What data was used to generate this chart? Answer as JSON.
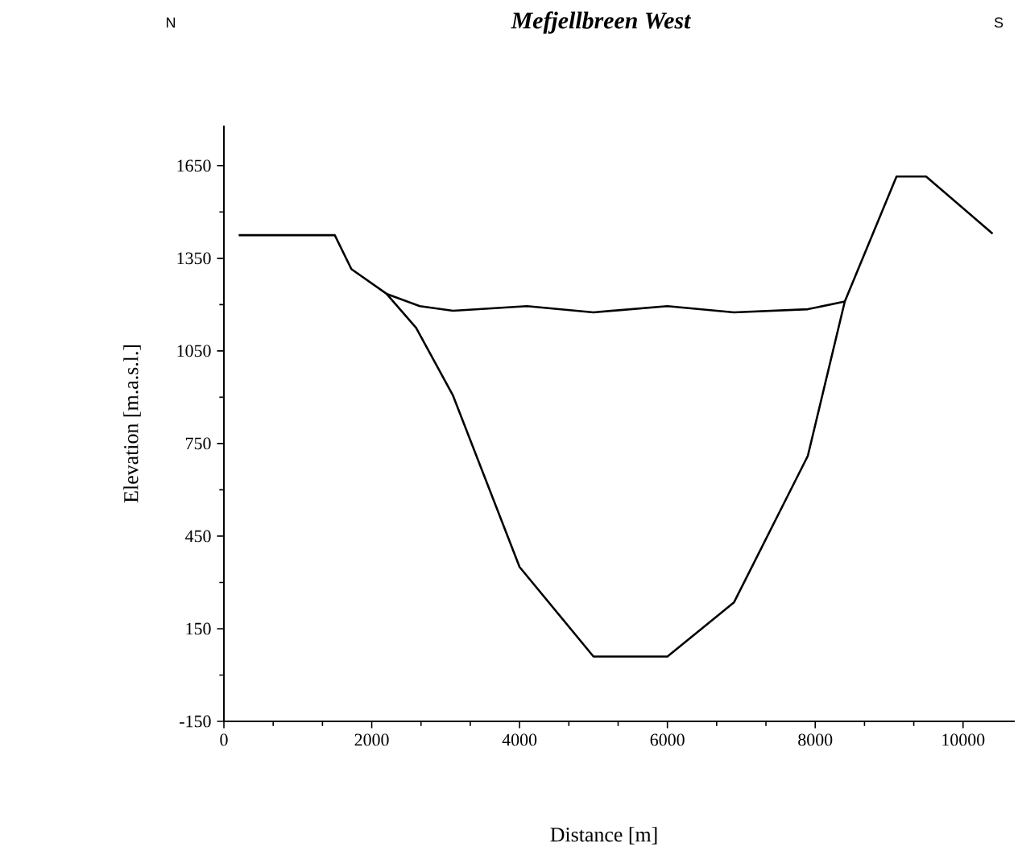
{
  "chart_data": {
    "type": "line",
    "title": "Mefjellbreen West",
    "xlabel": "Distance [m]",
    "ylabel": "Elevation [m.a.s.l.]",
    "annotations": [
      "N",
      "S"
    ],
    "xlim": [
      0,
      10700
    ],
    "ylim": [
      -150,
      1780
    ],
    "xticks": [
      0,
      2000,
      4000,
      6000,
      8000,
      10000
    ],
    "yticks": [
      -150,
      150,
      450,
      750,
      1050,
      1350,
      1650
    ],
    "series": [
      {
        "color": "#000000",
        "x": [
          200,
          1500,
          1725,
          2200,
          2600,
          3100,
          4000,
          5000,
          6000,
          6900,
          7900,
          8400,
          9100,
          9500,
          10400
        ],
        "values": [
          1425,
          1425,
          1315,
          1235,
          1125,
          905,
          350,
          60,
          60,
          235,
          710,
          1210,
          1615,
          1615,
          1430
        ]
      },
      {
        "color": "#000000",
        "x": [
          2200,
          2650,
          3100,
          4100,
          5000,
          6000,
          6900,
          7900,
          8400
        ],
        "values": [
          1235,
          1195,
          1180,
          1195,
          1175,
          1195,
          1175,
          1185,
          1210
        ]
      }
    ]
  }
}
